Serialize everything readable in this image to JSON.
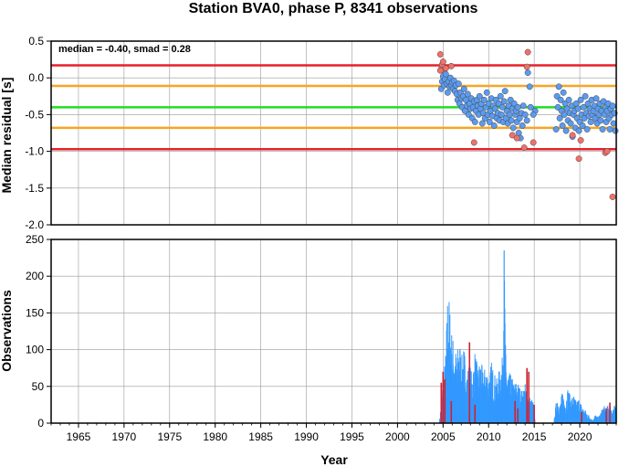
{
  "chart_data": [
    {
      "type": "scatter",
      "title": "Station BVA0, phase P, 8341 observations",
      "xlabel": "",
      "ylabel": "Median residual [s]",
      "annotation": "median = -0.40, smad = 0.28",
      "xlim": [
        1962,
        2024
      ],
      "ylim": [
        -2.0,
        0.5
      ],
      "yticks": [
        "0.5",
        "0.0",
        "-0.5",
        "-1.0",
        "-1.5",
        "-2.0"
      ],
      "ytick_values": [
        0.5,
        0.0,
        -0.5,
        -1.0,
        -1.5,
        -2.0
      ],
      "grid": true,
      "hlines": [
        {
          "y": 0.17,
          "color": "#e8202a"
        },
        {
          "y": -0.11,
          "color": "#f5a623"
        },
        {
          "y": -0.4,
          "color": "#22dd22"
        },
        {
          "y": -0.68,
          "color": "#f5a623"
        },
        {
          "y": -0.97,
          "color": "#e8202a"
        }
      ],
      "colors": {
        "inlier": "#5b9bf0",
        "outlier": "#f2706a"
      },
      "points": [
        [
          2004.7,
          0.32,
          "o"
        ],
        [
          2004.8,
          0.12,
          "o"
        ],
        [
          2004.9,
          0.18,
          "o"
        ],
        [
          2005.0,
          0.22,
          "o"
        ],
        [
          2005.1,
          0.1,
          "o"
        ],
        [
          2005.3,
          0.13,
          "o"
        ],
        [
          2005.9,
          0.16,
          "o"
        ],
        [
          2004.7,
          0.1,
          "o"
        ],
        [
          2004.8,
          -0.15,
          "i"
        ],
        [
          2004.9,
          -0.05,
          "i"
        ],
        [
          2005.0,
          0.02,
          "i"
        ],
        [
          2005.1,
          -0.1,
          "i"
        ],
        [
          2005.2,
          -0.02,
          "i"
        ],
        [
          2005.3,
          0.05,
          "i"
        ],
        [
          2005.4,
          -0.08,
          "i"
        ],
        [
          2005.5,
          -0.2,
          "i"
        ],
        [
          2005.6,
          -0.05,
          "i"
        ],
        [
          2005.7,
          -0.12,
          "i"
        ],
        [
          2005.8,
          0.0,
          "i"
        ],
        [
          2005.9,
          -0.1,
          "i"
        ],
        [
          2006.0,
          -0.06,
          "i"
        ],
        [
          2006.1,
          -0.15,
          "i"
        ],
        [
          2006.2,
          -0.04,
          "i"
        ],
        [
          2006.3,
          -0.18,
          "i"
        ],
        [
          2006.4,
          -0.1,
          "i"
        ],
        [
          2006.5,
          -0.22,
          "i"
        ],
        [
          2006.6,
          -0.3,
          "i"
        ],
        [
          2006.7,
          -0.08,
          "i"
        ],
        [
          2006.8,
          -0.35,
          "i"
        ],
        [
          2006.9,
          -0.2,
          "i"
        ],
        [
          2007.0,
          -0.28,
          "i"
        ],
        [
          2007.1,
          -0.4,
          "i"
        ],
        [
          2007.2,
          -0.25,
          "i"
        ],
        [
          2007.3,
          -0.15,
          "i"
        ],
        [
          2007.4,
          -0.45,
          "i"
        ],
        [
          2007.5,
          -0.3,
          "i"
        ],
        [
          2007.6,
          -0.38,
          "i"
        ],
        [
          2007.7,
          -0.22,
          "i"
        ],
        [
          2007.8,
          -0.5,
          "i"
        ],
        [
          2007.9,
          -0.35,
          "i"
        ],
        [
          2008.0,
          -0.42,
          "i"
        ],
        [
          2008.1,
          -0.28,
          "i"
        ],
        [
          2008.2,
          -0.55,
          "i"
        ],
        [
          2008.3,
          -0.4,
          "i"
        ],
        [
          2008.4,
          -0.32,
          "i"
        ],
        [
          2008.5,
          -0.6,
          "i"
        ],
        [
          2008.6,
          -0.45,
          "i"
        ],
        [
          2008.7,
          -0.3,
          "i"
        ],
        [
          2008.8,
          -0.38,
          "i"
        ],
        [
          2008.9,
          -0.5,
          "i"
        ],
        [
          2009.0,
          -0.25,
          "i"
        ],
        [
          2009.1,
          -0.42,
          "i"
        ],
        [
          2009.2,
          -0.35,
          "i"
        ],
        [
          2009.3,
          -0.62,
          "i"
        ],
        [
          2009.4,
          -0.48,
          "i"
        ],
        [
          2009.5,
          -0.3,
          "i"
        ],
        [
          2009.6,
          -0.55,
          "i"
        ],
        [
          2009.7,
          -0.4,
          "i"
        ],
        [
          2009.8,
          -0.2,
          "i"
        ],
        [
          2009.9,
          -0.5,
          "i"
        ],
        [
          2010.0,
          -0.35,
          "i"
        ],
        [
          2010.1,
          -0.6,
          "i"
        ],
        [
          2010.2,
          -0.45,
          "i"
        ],
        [
          2010.3,
          -0.28,
          "i"
        ],
        [
          2010.4,
          -0.52,
          "i"
        ],
        [
          2010.5,
          -0.38,
          "i"
        ],
        [
          2010.6,
          -0.65,
          "i"
        ],
        [
          2010.7,
          -0.42,
          "i"
        ],
        [
          2010.8,
          -0.3,
          "i"
        ],
        [
          2010.9,
          -0.55,
          "i"
        ],
        [
          2011.0,
          -0.48,
          "i"
        ],
        [
          2011.1,
          -0.35,
          "i"
        ],
        [
          2011.2,
          -0.58,
          "i"
        ],
        [
          2011.3,
          -0.25,
          "i"
        ],
        [
          2011.4,
          -0.5,
          "i"
        ],
        [
          2011.5,
          -0.4,
          "i"
        ],
        [
          2011.6,
          -0.6,
          "i"
        ],
        [
          2011.7,
          -0.32,
          "i"
        ],
        [
          2011.8,
          -0.18,
          "i"
        ],
        [
          2011.9,
          -0.55,
          "i"
        ],
        [
          2012.0,
          -0.45,
          "i"
        ],
        [
          2012.1,
          -0.62,
          "i"
        ],
        [
          2012.2,
          -0.38,
          "i"
        ],
        [
          2012.3,
          -0.5,
          "i"
        ],
        [
          2012.4,
          -0.3,
          "i"
        ],
        [
          2012.5,
          -0.58,
          "i"
        ],
        [
          2012.6,
          -0.42,
          "i"
        ],
        [
          2012.7,
          -0.68,
          "i"
        ],
        [
          2012.8,
          -0.35,
          "i"
        ],
        [
          2012.9,
          -0.5,
          "i"
        ],
        [
          2013.0,
          -0.45,
          "i"
        ],
        [
          2013.1,
          -0.6,
          "i"
        ],
        [
          2013.2,
          -0.4,
          "i"
        ],
        [
          2013.3,
          -0.75,
          "i"
        ],
        [
          2013.4,
          -0.55,
          "i"
        ],
        [
          2013.5,
          -0.82,
          "i"
        ],
        [
          2013.6,
          -0.48,
          "i"
        ],
        [
          2013.7,
          -0.65,
          "i"
        ],
        [
          2013.8,
          -0.38,
          "i"
        ],
        [
          2014.0,
          -0.5,
          "i"
        ],
        [
          2014.2,
          -0.58,
          "i"
        ],
        [
          2014.5,
          -0.12,
          "i"
        ],
        [
          2014.3,
          0.07,
          "i"
        ],
        [
          2014.6,
          -0.4,
          "i"
        ],
        [
          2015.1,
          -0.45,
          "i"
        ],
        [
          2014.9,
          -0.5,
          "i"
        ],
        [
          2008.4,
          -0.88,
          "o"
        ],
        [
          2012.6,
          -0.78,
          "o"
        ],
        [
          2013.1,
          -0.82,
          "o"
        ],
        [
          2013.9,
          -0.95,
          "o"
        ],
        [
          2014.2,
          0.15,
          "o"
        ],
        [
          2014.3,
          0.35,
          "o"
        ],
        [
          2014.9,
          -0.88,
          "o"
        ],
        [
          2017.4,
          -0.7,
          "i"
        ],
        [
          2017.5,
          -0.25,
          "i"
        ],
        [
          2017.6,
          -0.4,
          "i"
        ],
        [
          2017.7,
          -0.12,
          "i"
        ],
        [
          2017.8,
          -0.55,
          "i"
        ],
        [
          2017.9,
          -0.3,
          "i"
        ],
        [
          2018.0,
          -0.45,
          "i"
        ],
        [
          2018.1,
          -0.65,
          "i"
        ],
        [
          2018.2,
          -0.2,
          "i"
        ],
        [
          2018.3,
          -0.5,
          "i"
        ],
        [
          2018.4,
          -0.35,
          "i"
        ],
        [
          2018.5,
          -0.72,
          "i"
        ],
        [
          2018.6,
          -0.42,
          "i"
        ],
        [
          2018.7,
          -0.58,
          "i"
        ],
        [
          2018.8,
          -0.3,
          "i"
        ],
        [
          2018.9,
          -0.48,
          "i"
        ],
        [
          2019.0,
          -0.62,
          "i"
        ],
        [
          2019.1,
          -0.38,
          "i"
        ],
        [
          2019.2,
          -0.8,
          "i"
        ],
        [
          2019.3,
          -0.5,
          "i"
        ],
        [
          2019.4,
          -0.45,
          "i"
        ],
        [
          2019.5,
          -0.68,
          "i"
        ],
        [
          2019.6,
          -0.35,
          "i"
        ],
        [
          2019.7,
          -0.55,
          "i"
        ],
        [
          2019.8,
          -0.42,
          "i"
        ],
        [
          2019.9,
          -0.72,
          "i"
        ],
        [
          2020.0,
          -0.6,
          "i"
        ],
        [
          2020.1,
          -0.3,
          "i"
        ],
        [
          2020.2,
          -0.5,
          "i"
        ],
        [
          2020.3,
          -0.65,
          "i"
        ],
        [
          2020.4,
          -0.4,
          "i"
        ],
        [
          2020.5,
          -0.55,
          "i"
        ],
        [
          2020.6,
          -0.25,
          "i"
        ],
        [
          2020.7,
          -0.48,
          "i"
        ],
        [
          2020.8,
          -0.7,
          "i"
        ],
        [
          2020.9,
          -0.35,
          "i"
        ],
        [
          2021.0,
          -0.52,
          "i"
        ],
        [
          2021.1,
          -0.42,
          "i"
        ],
        [
          2021.2,
          -0.6,
          "i"
        ],
        [
          2021.3,
          -0.3,
          "i"
        ],
        [
          2021.4,
          -0.5,
          "i"
        ],
        [
          2021.5,
          -0.45,
          "i"
        ],
        [
          2021.6,
          -0.38,
          "i"
        ],
        [
          2021.7,
          -0.55,
          "i"
        ],
        [
          2021.8,
          -0.28,
          "i"
        ],
        [
          2021.9,
          -0.62,
          "i"
        ],
        [
          2022.0,
          -0.42,
          "i"
        ],
        [
          2022.1,
          -0.5,
          "i"
        ],
        [
          2022.2,
          -0.35,
          "i"
        ],
        [
          2022.3,
          -0.58,
          "i"
        ],
        [
          2022.4,
          -0.45,
          "i"
        ],
        [
          2022.5,
          -0.7,
          "i"
        ],
        [
          2022.6,
          -0.32,
          "i"
        ],
        [
          2022.7,
          -0.5,
          "i"
        ],
        [
          2022.8,
          -0.4,
          "i"
        ],
        [
          2022.9,
          -0.6,
          "i"
        ],
        [
          2023.0,
          -0.45,
          "i"
        ],
        [
          2023.1,
          -0.35,
          "i"
        ],
        [
          2023.2,
          -0.55,
          "i"
        ],
        [
          2023.3,
          -0.7,
          "i"
        ],
        [
          2023.4,
          -0.42,
          "i"
        ],
        [
          2023.5,
          -0.5,
          "i"
        ],
        [
          2023.6,
          -0.38,
          "i"
        ],
        [
          2023.7,
          -0.62,
          "i"
        ],
        [
          2023.8,
          -0.48,
          "i"
        ],
        [
          2023.9,
          -0.72,
          "i"
        ],
        [
          2019.2,
          -0.78,
          "o"
        ],
        [
          2019.9,
          -1.1,
          "o"
        ],
        [
          2020.1,
          -0.85,
          "o"
        ],
        [
          2022.8,
          -1.02,
          "o"
        ],
        [
          2023.0,
          -1.0,
          "o"
        ],
        [
          2023.6,
          -1.62,
          "o"
        ]
      ]
    },
    {
      "type": "bar",
      "xlabel": "Year",
      "ylabel": "Observations",
      "xlim": [
        1962,
        2024
      ],
      "ylim": [
        0,
        250
      ],
      "xticks": [
        "1965",
        "1970",
        "1975",
        "1980",
        "1985",
        "1990",
        "1995",
        "2000",
        "2005",
        "2010",
        "2015",
        "2020"
      ],
      "xtick_values": [
        1965,
        1970,
        1975,
        1980,
        1985,
        1990,
        1995,
        2000,
        2005,
        2010,
        2015,
        2020
      ],
      "yticks": [
        "0",
        "50",
        "100",
        "150",
        "200",
        "250"
      ],
      "ytick_values": [
        0,
        50,
        100,
        150,
        200,
        250
      ],
      "grid": true,
      "colors": {
        "inlier": "#3399ff",
        "outlier": "#cc2233"
      },
      "envelope": [
        [
          2004.6,
          2
        ],
        [
          2004.8,
          30
        ],
        [
          2005.0,
          60
        ],
        [
          2005.3,
          100
        ],
        [
          2005.5,
          180
        ],
        [
          2005.7,
          170
        ],
        [
          2005.9,
          130
        ],
        [
          2006.2,
          110
        ],
        [
          2006.5,
          95
        ],
        [
          2006.8,
          120
        ],
        [
          2007.0,
          90
        ],
        [
          2007.3,
          105
        ],
        [
          2007.6,
          70
        ],
        [
          2007.9,
          85
        ],
        [
          2008.2,
          65
        ],
        [
          2008.5,
          100
        ],
        [
          2008.8,
          75
        ],
        [
          2009.1,
          90
        ],
        [
          2009.4,
          70
        ],
        [
          2009.7,
          80
        ],
        [
          2010.0,
          65
        ],
        [
          2010.3,
          85
        ],
        [
          2010.6,
          70
        ],
        [
          2010.9,
          60
        ],
        [
          2011.2,
          75
        ],
        [
          2011.5,
          90
        ],
        [
          2011.7,
          235
        ],
        [
          2011.9,
          80
        ],
        [
          2012.2,
          70
        ],
        [
          2012.5,
          65
        ],
        [
          2012.8,
          55
        ],
        [
          2013.1,
          60
        ],
        [
          2013.4,
          50
        ],
        [
          2013.7,
          45
        ],
        [
          2014.0,
          55
        ],
        [
          2014.3,
          40
        ],
        [
          2014.6,
          35
        ],
        [
          2014.9,
          30
        ],
        [
          2015.1,
          8
        ],
        [
          2017.2,
          5
        ],
        [
          2017.5,
          40
        ],
        [
          2017.8,
          25
        ],
        [
          2018.1,
          45
        ],
        [
          2018.4,
          30
        ],
        [
          2018.7,
          50
        ],
        [
          2019.0,
          35
        ],
        [
          2019.3,
          40
        ],
        [
          2019.6,
          30
        ],
        [
          2019.9,
          35
        ],
        [
          2020.2,
          25
        ],
        [
          2020.5,
          20
        ],
        [
          2020.8,
          15
        ],
        [
          2021.1,
          10
        ],
        [
          2021.4,
          5
        ],
        [
          2021.7,
          12
        ],
        [
          2022.0,
          8
        ],
        [
          2022.3,
          15
        ],
        [
          2022.6,
          25
        ],
        [
          2022.9,
          20
        ],
        [
          2023.2,
          28
        ],
        [
          2023.5,
          22
        ],
        [
          2023.8,
          25
        ],
        [
          2024.0,
          18
        ]
      ],
      "outlier_bars": [
        [
          2004.8,
          55
        ],
        [
          2005.0,
          70
        ],
        [
          2005.2,
          60
        ],
        [
          2005.9,
          30
        ],
        [
          2007.9,
          110
        ],
        [
          2008.5,
          25
        ],
        [
          2012.9,
          30
        ],
        [
          2013.2,
          20
        ],
        [
          2014.2,
          75
        ],
        [
          2014.4,
          70
        ],
        [
          2015.0,
          25
        ],
        [
          2020.2,
          15
        ],
        [
          2022.9,
          20
        ],
        [
          2023.3,
          28
        ]
      ]
    }
  ]
}
